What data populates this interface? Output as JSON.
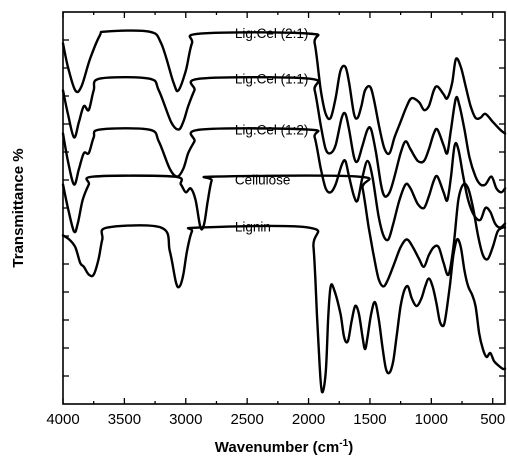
{
  "chart_data": {
    "type": "line",
    "xlabel": "Wavenumber (cm",
    "xlabel_sup": "-1",
    "xlabel_tail": ")",
    "ylabel": "Transmittance %",
    "xlim": [
      4000,
      400
    ],
    "x_reversed": true,
    "ylim": [
      0,
      100
    ],
    "x_ticks": [
      4000,
      3500,
      3000,
      2500,
      2000,
      1500,
      1000,
      500
    ],
    "y_minor_ticks": 14,
    "y_tick_labels_shown": false,
    "grid": false,
    "legend": "none (series labelled inline)",
    "series": [
      {
        "name": "Lig:Cel (2:1)",
        "label_at": [
          2600,
          93.4
        ],
        "points": [
          [
            4000,
            92
          ],
          [
            3960,
            86
          ],
          [
            3900,
            80
          ],
          [
            3850,
            81
          ],
          [
            3780,
            88
          ],
          [
            3700,
            94
          ],
          [
            3650,
            95
          ],
          [
            3300,
            95
          ],
          [
            3200,
            92
          ],
          [
            3100,
            82
          ],
          [
            3060,
            80
          ],
          [
            3000,
            85
          ],
          [
            2950,
            92
          ],
          [
            2880,
            94.5
          ],
          [
            2000,
            94.5
          ],
          [
            1950,
            92
          ],
          [
            1900,
            80
          ],
          [
            1860,
            74
          ],
          [
            1820,
            73
          ],
          [
            1780,
            78
          ],
          [
            1740,
            85
          ],
          [
            1700,
            86
          ],
          [
            1670,
            82
          ],
          [
            1630,
            74
          ],
          [
            1600,
            73
          ],
          [
            1570,
            76
          ],
          [
            1540,
            80
          ],
          [
            1500,
            81
          ],
          [
            1470,
            78
          ],
          [
            1420,
            70
          ],
          [
            1380,
            65
          ],
          [
            1340,
            64
          ],
          [
            1300,
            68
          ],
          [
            1250,
            72
          ],
          [
            1200,
            76
          ],
          [
            1160,
            78
          ],
          [
            1100,
            77
          ],
          [
            1060,
            75
          ],
          [
            1020,
            76
          ],
          [
            980,
            80
          ],
          [
            950,
            81
          ],
          [
            900,
            79
          ],
          [
            870,
            78
          ],
          [
            830,
            82
          ],
          [
            800,
            88
          ],
          [
            760,
            86
          ],
          [
            720,
            81
          ],
          [
            680,
            76
          ],
          [
            640,
            73
          ],
          [
            600,
            73
          ],
          [
            560,
            74
          ],
          [
            500,
            72
          ],
          [
            440,
            70
          ],
          [
            400,
            69
          ]
        ]
      },
      {
        "name": "Lig:Cel (1:1)",
        "label_at": [
          2600,
          81.7
        ],
        "points": [
          [
            4000,
            80
          ],
          [
            3960,
            74
          ],
          [
            3910,
            68
          ],
          [
            3870,
            72
          ],
          [
            3830,
            76
          ],
          [
            3790,
            75
          ],
          [
            3750,
            80
          ],
          [
            3700,
            83
          ],
          [
            3300,
            83
          ],
          [
            3220,
            80
          ],
          [
            3120,
            72
          ],
          [
            3060,
            70
          ],
          [
            3020,
            72
          ],
          [
            2980,
            76
          ],
          [
            2930,
            80
          ],
          [
            2880,
            83
          ],
          [
            2000,
            83
          ],
          [
            1950,
            80
          ],
          [
            1900,
            71
          ],
          [
            1860,
            65
          ],
          [
            1820,
            64
          ],
          [
            1780,
            66
          ],
          [
            1730,
            73
          ],
          [
            1700,
            74
          ],
          [
            1670,
            70
          ],
          [
            1630,
            63
          ],
          [
            1600,
            62
          ],
          [
            1560,
            66
          ],
          [
            1520,
            70
          ],
          [
            1490,
            70
          ],
          [
            1450,
            64
          ],
          [
            1410,
            56
          ],
          [
            1380,
            53
          ],
          [
            1340,
            54
          ],
          [
            1300,
            58
          ],
          [
            1250,
            64
          ],
          [
            1210,
            67
          ],
          [
            1170,
            65
          ],
          [
            1110,
            62
          ],
          [
            1060,
            62
          ],
          [
            1020,
            65
          ],
          [
            980,
            69
          ],
          [
            950,
            70
          ],
          [
            900,
            66
          ],
          [
            870,
            64
          ],
          [
            840,
            70
          ],
          [
            800,
            78
          ],
          [
            770,
            76
          ],
          [
            730,
            70
          ],
          [
            690,
            63
          ],
          [
            640,
            58
          ],
          [
            600,
            56
          ],
          [
            560,
            56
          ],
          [
            510,
            58
          ],
          [
            470,
            55
          ],
          [
            430,
            54
          ],
          [
            400,
            55
          ]
        ]
      },
      {
        "name": "Lig:Cel (1:2)",
        "label_at": [
          2600,
          68.7
        ],
        "points": [
          [
            4000,
            69
          ],
          [
            3960,
            62
          ],
          [
            3910,
            56
          ],
          [
            3870,
            60
          ],
          [
            3830,
            64
          ],
          [
            3790,
            64
          ],
          [
            3750,
            68
          ],
          [
            3700,
            70
          ],
          [
            3300,
            70
          ],
          [
            3220,
            67
          ],
          [
            3130,
            60
          ],
          [
            3070,
            58
          ],
          [
            3020,
            60
          ],
          [
            2980,
            64
          ],
          [
            2930,
            67
          ],
          [
            2880,
            70
          ],
          [
            2000,
            70
          ],
          [
            1950,
            68
          ],
          [
            1900,
            60
          ],
          [
            1860,
            55
          ],
          [
            1820,
            54
          ],
          [
            1780,
            56
          ],
          [
            1730,
            61
          ],
          [
            1700,
            62
          ],
          [
            1670,
            58
          ],
          [
            1630,
            53
          ],
          [
            1600,
            52
          ],
          [
            1560,
            58
          ],
          [
            1520,
            62
          ],
          [
            1480,
            58
          ],
          [
            1430,
            48
          ],
          [
            1390,
            43
          ],
          [
            1350,
            42
          ],
          [
            1310,
            46
          ],
          [
            1260,
            52
          ],
          [
            1210,
            56
          ],
          [
            1170,
            55
          ],
          [
            1110,
            51
          ],
          [
            1060,
            50
          ],
          [
            1020,
            53
          ],
          [
            980,
            57
          ],
          [
            950,
            58
          ],
          [
            900,
            54
          ],
          [
            870,
            52
          ],
          [
            840,
            58
          ],
          [
            810,
            66
          ],
          [
            780,
            65
          ],
          [
            740,
            58
          ],
          [
            700,
            52
          ],
          [
            650,
            48
          ],
          [
            600,
            47
          ],
          [
            560,
            50
          ],
          [
            520,
            49
          ],
          [
            480,
            46
          ],
          [
            440,
            45
          ],
          [
            400,
            46
          ]
        ]
      },
      {
        "name": "Cellulose",
        "label_at": [
          2600,
          56
        ],
        "points": [
          [
            4000,
            56
          ],
          [
            3960,
            50
          ],
          [
            3910,
            44
          ],
          [
            3880,
            46
          ],
          [
            3840,
            52
          ],
          [
            3790,
            56
          ],
          [
            3750,
            58
          ],
          [
            3100,
            58
          ],
          [
            3040,
            56
          ],
          [
            3000,
            54
          ],
          [
            2960,
            55
          ],
          [
            2920,
            52
          ],
          [
            2880,
            45
          ],
          [
            2850,
            46
          ],
          [
            2820,
            52
          ],
          [
            2790,
            57
          ],
          [
            2760,
            58
          ],
          [
            1600,
            58
          ],
          [
            1560,
            55
          ],
          [
            1510,
            45
          ],
          [
            1470,
            38
          ],
          [
            1430,
            32
          ],
          [
            1390,
            30
          ],
          [
            1350,
            32
          ],
          [
            1300,
            36
          ],
          [
            1250,
            40
          ],
          [
            1200,
            42
          ],
          [
            1150,
            40
          ],
          [
            1100,
            37
          ],
          [
            1060,
            35
          ],
          [
            1020,
            38
          ],
          [
            980,
            40
          ],
          [
            940,
            40
          ],
          [
            900,
            36
          ],
          [
            860,
            33
          ],
          [
            820,
            40
          ],
          [
            780,
            52
          ],
          [
            740,
            56
          ],
          [
            700,
            55
          ],
          [
            660,
            50
          ],
          [
            620,
            43
          ],
          [
            580,
            38
          ],
          [
            540,
            37
          ],
          [
            500,
            40
          ],
          [
            460,
            44
          ],
          [
            420,
            45
          ],
          [
            400,
            45
          ]
        ]
      },
      {
        "name": "Lignin",
        "label_at": [
          2600,
          44
        ],
        "points": [
          [
            4000,
            43
          ],
          [
            3950,
            42
          ],
          [
            3900,
            40
          ],
          [
            3860,
            36
          ],
          [
            3830,
            35
          ],
          [
            3790,
            33
          ],
          [
            3750,
            33
          ],
          [
            3710,
            37
          ],
          [
            3680,
            42
          ],
          [
            3640,
            45
          ],
          [
            3200,
            45
          ],
          [
            3130,
            39
          ],
          [
            3080,
            31
          ],
          [
            3050,
            30
          ],
          [
            3020,
            33
          ],
          [
            2990,
            39
          ],
          [
            2950,
            44
          ],
          [
            2900,
            45
          ],
          [
            2000,
            45
          ],
          [
            1960,
            40
          ],
          [
            1930,
            22
          ],
          [
            1910,
            10
          ],
          [
            1890,
            3
          ],
          [
            1860,
            8
          ],
          [
            1840,
            22
          ],
          [
            1820,
            30
          ],
          [
            1790,
            29
          ],
          [
            1740,
            23
          ],
          [
            1710,
            17
          ],
          [
            1680,
            16
          ],
          [
            1650,
            21
          ],
          [
            1620,
            25
          ],
          [
            1590,
            23
          ],
          [
            1560,
            17
          ],
          [
            1540,
            14
          ],
          [
            1520,
            17
          ],
          [
            1490,
            23
          ],
          [
            1460,
            26
          ],
          [
            1430,
            22
          ],
          [
            1400,
            15
          ],
          [
            1370,
            9
          ],
          [
            1340,
            8
          ],
          [
            1310,
            11
          ],
          [
            1280,
            18
          ],
          [
            1250,
            25
          ],
          [
            1220,
            29
          ],
          [
            1190,
            30
          ],
          [
            1160,
            27
          ],
          [
            1120,
            25
          ],
          [
            1080,
            27
          ],
          [
            1050,
            30
          ],
          [
            1020,
            32
          ],
          [
            990,
            30
          ],
          [
            960,
            26
          ],
          [
            930,
            21
          ],
          [
            900,
            20
          ],
          [
            880,
            23
          ],
          [
            850,
            30
          ],
          [
            820,
            38
          ],
          [
            790,
            42
          ],
          [
            760,
            40
          ],
          [
            730,
            34
          ],
          [
            700,
            30
          ],
          [
            670,
            28
          ],
          [
            640,
            25
          ],
          [
            610,
            18
          ],
          [
            580,
            14
          ],
          [
            550,
            12
          ],
          [
            520,
            13
          ],
          [
            490,
            11
          ],
          [
            460,
            10
          ],
          [
            420,
            9
          ],
          [
            400,
            9
          ]
        ]
      }
    ]
  }
}
